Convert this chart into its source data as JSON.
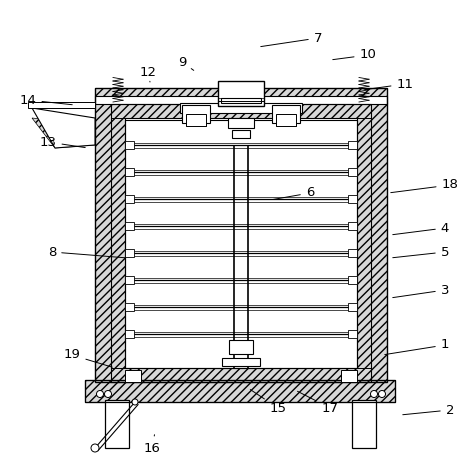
{
  "background_color": "#ffffff",
  "line_color": "#000000",
  "label_data": [
    [
      "1",
      382,
      355,
      445,
      345
    ],
    [
      "2",
      400,
      415,
      450,
      410
    ],
    [
      "3",
      390,
      298,
      445,
      290
    ],
    [
      "4",
      390,
      235,
      445,
      228
    ],
    [
      "5",
      390,
      258,
      445,
      252
    ],
    [
      "6",
      270,
      200,
      310,
      193
    ],
    [
      "7",
      258,
      47,
      318,
      38
    ],
    [
      "8",
      128,
      258,
      52,
      252
    ],
    [
      "9",
      196,
      72,
      182,
      62
    ],
    [
      "10",
      330,
      60,
      368,
      55
    ],
    [
      "11",
      362,
      90,
      405,
      84
    ],
    [
      "12",
      150,
      82,
      148,
      72
    ],
    [
      "13",
      88,
      148,
      48,
      142
    ],
    [
      "14",
      75,
      105,
      28,
      100
    ],
    [
      "15",
      248,
      388,
      278,
      408
    ],
    [
      "16",
      155,
      432,
      152,
      448
    ],
    [
      "17",
      295,
      390,
      330,
      408
    ],
    [
      "18",
      388,
      193,
      450,
      185
    ],
    [
      "19",
      115,
      368,
      72,
      355
    ]
  ]
}
